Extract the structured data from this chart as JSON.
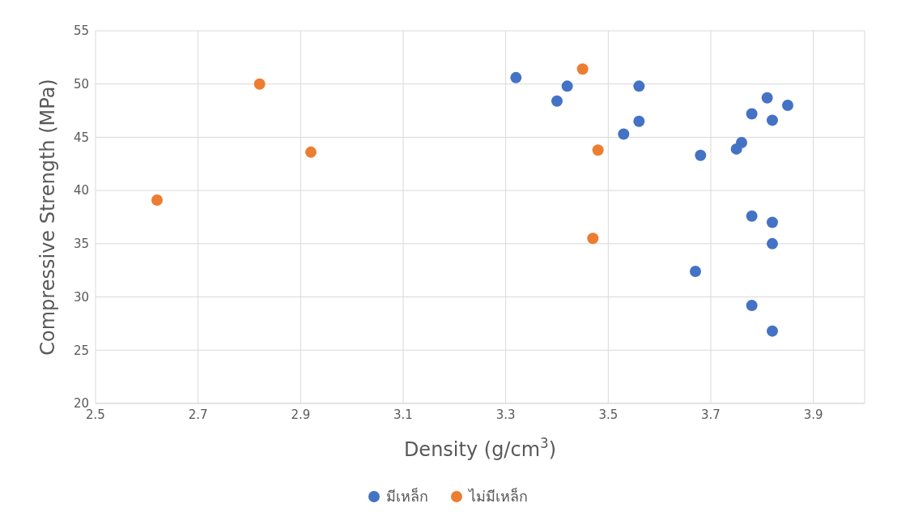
{
  "chart_data": {
    "type": "scatter",
    "xlabel": "Density (g/cm$^{3}$)",
    "ylabel": "Compressive Strength (MPa)",
    "xlim": [
      2.5,
      4.0
    ],
    "xticks": [
      2.5,
      2.7,
      2.9,
      3.1,
      3.3,
      3.5,
      3.7,
      3.9
    ],
    "ylim": [
      20,
      55
    ],
    "yticks": [
      20,
      25,
      30,
      35,
      40,
      45,
      50,
      55
    ],
    "grid": true,
    "legend": "bottom",
    "marker": "circle",
    "series": [
      {
        "name": "มีเหล็ก",
        "color": "#4472c4",
        "x": [
          3.32,
          3.4,
          3.42,
          3.56,
          3.56,
          3.53,
          3.68,
          3.67,
          3.75,
          3.76,
          3.78,
          3.81,
          3.82,
          3.85,
          3.78,
          3.82,
          3.82,
          3.78,
          3.82
        ],
        "values": [
          50.6,
          48.4,
          49.8,
          49.8,
          46.5,
          45.3,
          43.3,
          32.4,
          43.9,
          44.5,
          47.2,
          48.7,
          46.6,
          48.0,
          37.6,
          37.0,
          35.0,
          29.2,
          26.8
        ]
      },
      {
        "name": "ไม่มีเหล็ก",
        "color": "#ed7d31",
        "x": [
          2.62,
          2.82,
          2.92,
          3.45,
          3.48,
          3.47
        ],
        "values": [
          39.1,
          50.0,
          43.6,
          51.4,
          43.8,
          35.5
        ]
      }
    ]
  }
}
